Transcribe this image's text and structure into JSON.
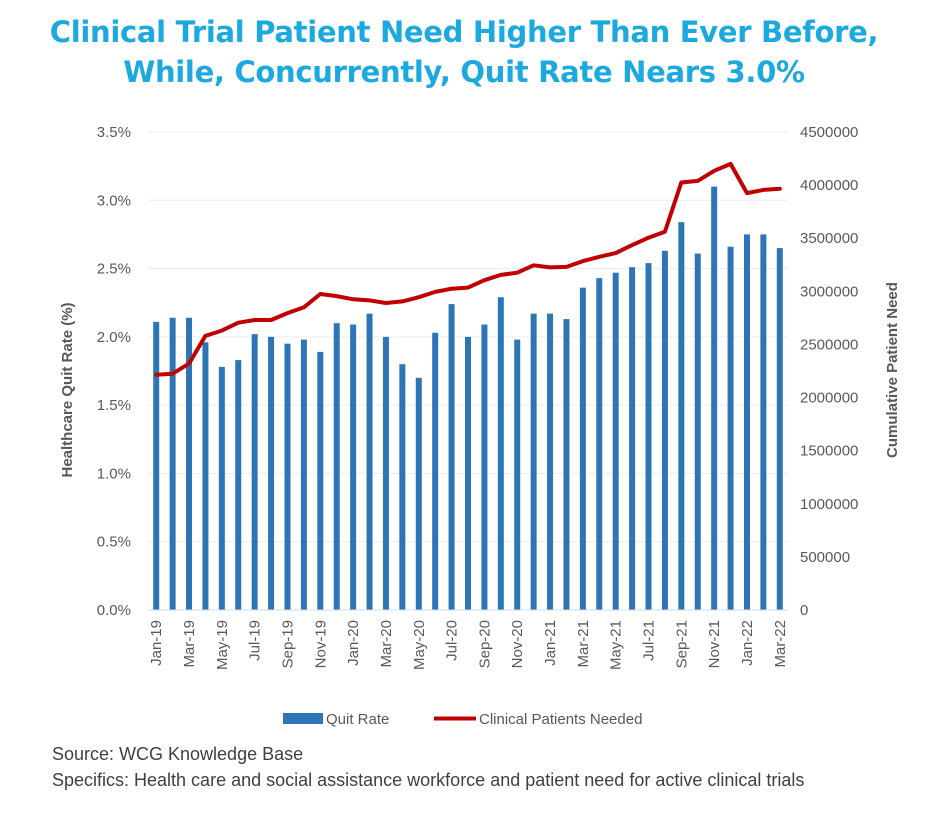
{
  "title_line1": "Clinical Trial Patient Need Higher Than Ever Before,",
  "title_line2": "While, Concurrently, Quit Rate Nears 3.0%",
  "chart_data": {
    "type": "bar",
    "categories": [
      "Jan-19",
      "Feb-19",
      "Mar-19",
      "Apr-19",
      "May-19",
      "Jun-19",
      "Jul-19",
      "Aug-19",
      "Sep-19",
      "Oct-19",
      "Nov-19",
      "Dec-19",
      "Jan-20",
      "Feb-20",
      "Mar-20",
      "Apr-20",
      "May-20",
      "Jun-20",
      "Jul-20",
      "Aug-20",
      "Sep-20",
      "Oct-20",
      "Nov-20",
      "Dec-20",
      "Jan-21",
      "Feb-21",
      "Mar-21",
      "Apr-21",
      "May-21",
      "Jun-21",
      "Jul-21",
      "Aug-21",
      "Sep-21",
      "Oct-21",
      "Nov-21",
      "Dec-21",
      "Jan-22",
      "Feb-22",
      "Mar-22"
    ],
    "tick_labels": [
      "Jan-19",
      "",
      "Mar-19",
      "",
      "May-19",
      "",
      "Jul-19",
      "",
      "Sep-19",
      "",
      "Nov-19",
      "",
      "Jan-20",
      "",
      "Mar-20",
      "",
      "May-20",
      "",
      "Jul-20",
      "",
      "Sep-20",
      "",
      "Nov-20",
      "",
      "Jan-21",
      "",
      "Mar-21",
      "",
      "May-21",
      "",
      "Jul-21",
      "",
      "Sep-21",
      "",
      "Nov-21",
      "",
      "Jan-22",
      "",
      "Mar-22"
    ],
    "series": [
      {
        "name": "Quit Rate",
        "type": "bar",
        "axis": "left",
        "color": "#2e75b6",
        "values": [
          2.11,
          2.14,
          2.14,
          1.96,
          1.78,
          1.83,
          2.02,
          2.0,
          1.95,
          1.98,
          1.89,
          2.1,
          2.09,
          2.17,
          2.0,
          1.8,
          1.7,
          2.03,
          2.24,
          2.0,
          2.09,
          2.29,
          1.98,
          2.17,
          2.17,
          2.13,
          2.36,
          2.43,
          2.47,
          2.51,
          2.54,
          2.63,
          2.84,
          2.61,
          3.1,
          2.66,
          2.75,
          2.75,
          2.65
        ]
      },
      {
        "name": "Clinical Patients Needed",
        "type": "line",
        "axis": "right",
        "color": "#c00000",
        "values": [
          2215000,
          2225000,
          2320000,
          2580000,
          2630000,
          2705000,
          2730000,
          2730000,
          2795000,
          2850000,
          2975000,
          2955000,
          2925000,
          2915000,
          2890000,
          2905000,
          2945000,
          2995000,
          3025000,
          3035000,
          3105000,
          3155000,
          3175000,
          3245000,
          3225000,
          3230000,
          3285000,
          3325000,
          3360000,
          3435000,
          3505000,
          3560000,
          4025000,
          4040000,
          4135000,
          4200000,
          3925000,
          3955000,
          3965000
        ]
      }
    ],
    "y_left": {
      "label": "Healthcare Quit Rate (%)",
      "ylim": [
        0,
        3.5
      ],
      "ticks": [
        0,
        0.5,
        1.0,
        1.5,
        2.0,
        2.5,
        3.0,
        3.5
      ],
      "tick_labels": [
        "0.0%",
        "0.5%",
        "1.0%",
        "1.5%",
        "2.0%",
        "2.5%",
        "3.0%",
        "3.5%"
      ]
    },
    "y_right": {
      "label": "Cumulative Patient Need",
      "ylim": [
        0,
        4500000
      ],
      "ticks": [
        0,
        500000,
        1000000,
        1500000,
        2000000,
        2500000,
        3000000,
        3500000,
        4000000,
        4500000
      ],
      "tick_labels": [
        "0",
        "500000",
        "1000000",
        "1500000",
        "2000000",
        "2500000",
        "3000000",
        "3500000",
        "4000000",
        "4500000"
      ]
    },
    "grid": true,
    "legend_position": "bottom"
  },
  "footnote": {
    "source": "Source: WCG Knowledge Base",
    "specifics": "Specifics: Health care and social assistance workforce and patient need for active clinical trials"
  }
}
